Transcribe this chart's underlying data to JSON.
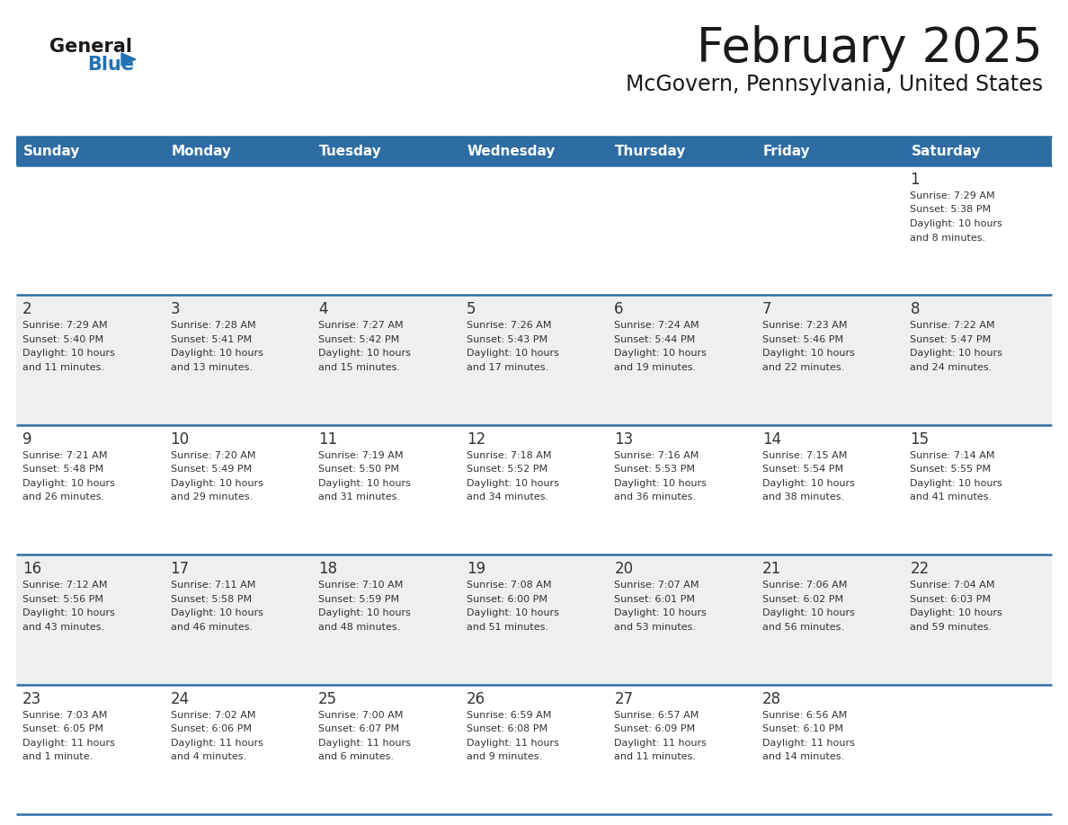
{
  "title": "February 2025",
  "subtitle": "McGovern, Pennsylvania, United States",
  "header_bg": "#2E6DA4",
  "header_text": "#FFFFFF",
  "cell_bg_even": "#FFFFFF",
  "cell_bg_odd": "#EFEFEF",
  "grid_line_color": "#2E6DA4",
  "day_headers": [
    "Sunday",
    "Monday",
    "Tuesday",
    "Wednesday",
    "Thursday",
    "Friday",
    "Saturday"
  ],
  "logo_general_color": "#1a1a1a",
  "logo_blue_color": "#2271B3",
  "title_color": "#1a1a1a",
  "subtitle_color": "#1a1a1a",
  "day_num_color": "#333333",
  "text_color": "#333333",
  "days_data": [
    {
      "day": 1,
      "col": 6,
      "row": 0,
      "sunrise": "7:29 AM",
      "sunset": "5:38 PM",
      "daylight_h": "10 hours",
      "daylight_m": "and 8 minutes."
    },
    {
      "day": 2,
      "col": 0,
      "row": 1,
      "sunrise": "7:29 AM",
      "sunset": "5:40 PM",
      "daylight_h": "10 hours",
      "daylight_m": "and 11 minutes."
    },
    {
      "day": 3,
      "col": 1,
      "row": 1,
      "sunrise": "7:28 AM",
      "sunset": "5:41 PM",
      "daylight_h": "10 hours",
      "daylight_m": "and 13 minutes."
    },
    {
      "day": 4,
      "col": 2,
      "row": 1,
      "sunrise": "7:27 AM",
      "sunset": "5:42 PM",
      "daylight_h": "10 hours",
      "daylight_m": "and 15 minutes."
    },
    {
      "day": 5,
      "col": 3,
      "row": 1,
      "sunrise": "7:26 AM",
      "sunset": "5:43 PM",
      "daylight_h": "10 hours",
      "daylight_m": "and 17 minutes."
    },
    {
      "day": 6,
      "col": 4,
      "row": 1,
      "sunrise": "7:24 AM",
      "sunset": "5:44 PM",
      "daylight_h": "10 hours",
      "daylight_m": "and 19 minutes."
    },
    {
      "day": 7,
      "col": 5,
      "row": 1,
      "sunrise": "7:23 AM",
      "sunset": "5:46 PM",
      "daylight_h": "10 hours",
      "daylight_m": "and 22 minutes."
    },
    {
      "day": 8,
      "col": 6,
      "row": 1,
      "sunrise": "7:22 AM",
      "sunset": "5:47 PM",
      "daylight_h": "10 hours",
      "daylight_m": "and 24 minutes."
    },
    {
      "day": 9,
      "col": 0,
      "row": 2,
      "sunrise": "7:21 AM",
      "sunset": "5:48 PM",
      "daylight_h": "10 hours",
      "daylight_m": "and 26 minutes."
    },
    {
      "day": 10,
      "col": 1,
      "row": 2,
      "sunrise": "7:20 AM",
      "sunset": "5:49 PM",
      "daylight_h": "10 hours",
      "daylight_m": "and 29 minutes."
    },
    {
      "day": 11,
      "col": 2,
      "row": 2,
      "sunrise": "7:19 AM",
      "sunset": "5:50 PM",
      "daylight_h": "10 hours",
      "daylight_m": "and 31 minutes."
    },
    {
      "day": 12,
      "col": 3,
      "row": 2,
      "sunrise": "7:18 AM",
      "sunset": "5:52 PM",
      "daylight_h": "10 hours",
      "daylight_m": "and 34 minutes."
    },
    {
      "day": 13,
      "col": 4,
      "row": 2,
      "sunrise": "7:16 AM",
      "sunset": "5:53 PM",
      "daylight_h": "10 hours",
      "daylight_m": "and 36 minutes."
    },
    {
      "day": 14,
      "col": 5,
      "row": 2,
      "sunrise": "7:15 AM",
      "sunset": "5:54 PM",
      "daylight_h": "10 hours",
      "daylight_m": "and 38 minutes."
    },
    {
      "day": 15,
      "col": 6,
      "row": 2,
      "sunrise": "7:14 AM",
      "sunset": "5:55 PM",
      "daylight_h": "10 hours",
      "daylight_m": "and 41 minutes."
    },
    {
      "day": 16,
      "col": 0,
      "row": 3,
      "sunrise": "7:12 AM",
      "sunset": "5:56 PM",
      "daylight_h": "10 hours",
      "daylight_m": "and 43 minutes."
    },
    {
      "day": 17,
      "col": 1,
      "row": 3,
      "sunrise": "7:11 AM",
      "sunset": "5:58 PM",
      "daylight_h": "10 hours",
      "daylight_m": "and 46 minutes."
    },
    {
      "day": 18,
      "col": 2,
      "row": 3,
      "sunrise": "7:10 AM",
      "sunset": "5:59 PM",
      "daylight_h": "10 hours",
      "daylight_m": "and 48 minutes."
    },
    {
      "day": 19,
      "col": 3,
      "row": 3,
      "sunrise": "7:08 AM",
      "sunset": "6:00 PM",
      "daylight_h": "10 hours",
      "daylight_m": "and 51 minutes."
    },
    {
      "day": 20,
      "col": 4,
      "row": 3,
      "sunrise": "7:07 AM",
      "sunset": "6:01 PM",
      "daylight_h": "10 hours",
      "daylight_m": "and 53 minutes."
    },
    {
      "day": 21,
      "col": 5,
      "row": 3,
      "sunrise": "7:06 AM",
      "sunset": "6:02 PM",
      "daylight_h": "10 hours",
      "daylight_m": "and 56 minutes."
    },
    {
      "day": 22,
      "col": 6,
      "row": 3,
      "sunrise": "7:04 AM",
      "sunset": "6:03 PM",
      "daylight_h": "10 hours",
      "daylight_m": "and 59 minutes."
    },
    {
      "day": 23,
      "col": 0,
      "row": 4,
      "sunrise": "7:03 AM",
      "sunset": "6:05 PM",
      "daylight_h": "11 hours",
      "daylight_m": "and 1 minute."
    },
    {
      "day": 24,
      "col": 1,
      "row": 4,
      "sunrise": "7:02 AM",
      "sunset": "6:06 PM",
      "daylight_h": "11 hours",
      "daylight_m": "and 4 minutes."
    },
    {
      "day": 25,
      "col": 2,
      "row": 4,
      "sunrise": "7:00 AM",
      "sunset": "6:07 PM",
      "daylight_h": "11 hours",
      "daylight_m": "and 6 minutes."
    },
    {
      "day": 26,
      "col": 3,
      "row": 4,
      "sunrise": "6:59 AM",
      "sunset": "6:08 PM",
      "daylight_h": "11 hours",
      "daylight_m": "and 9 minutes."
    },
    {
      "day": 27,
      "col": 4,
      "row": 4,
      "sunrise": "6:57 AM",
      "sunset": "6:09 PM",
      "daylight_h": "11 hours",
      "daylight_m": "and 11 minutes."
    },
    {
      "day": 28,
      "col": 5,
      "row": 4,
      "sunrise": "6:56 AM",
      "sunset": "6:10 PM",
      "daylight_h": "11 hours",
      "daylight_m": "and 14 minutes."
    }
  ]
}
